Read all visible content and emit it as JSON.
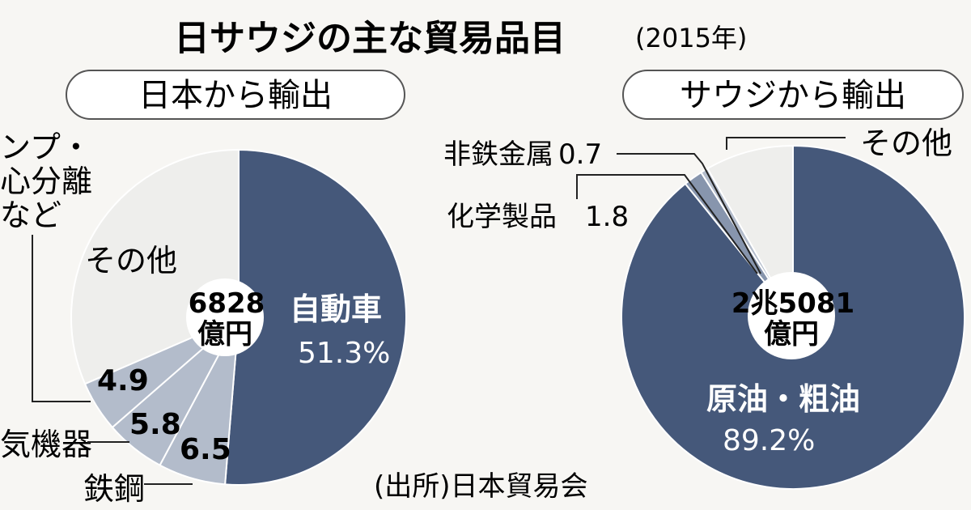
{
  "title": {
    "main": "日サウジの主な貿易品目",
    "year": "(2015年)"
  },
  "source": "(出所)日本貿易会",
  "colors": {
    "main_slice": "#45587a",
    "mid_slice": "#8795ad",
    "light_slice": "#b3bccb",
    "other_slice": "#eeeeec",
    "background": "#f7f6f3",
    "text": "#1a1a1a"
  },
  "chart_data": [
    {
      "type": "pie",
      "panel_label": "日本から輸出",
      "total": {
        "value": "6828",
        "unit": "億円"
      },
      "slices": [
        {
          "label": "自動車",
          "value": 51.3,
          "value_label": "51.3%"
        },
        {
          "label": "鉄鋼",
          "value": 6.5,
          "value_label": "6.5"
        },
        {
          "label": "気機器",
          "value": 5.8,
          "value_label": "5.8"
        },
        {
          "label": "ンプ・\n心分離\nなど",
          "value": 4.9,
          "value_label": "4.9"
        },
        {
          "label": "その他",
          "value": 31.5,
          "value_label": ""
        }
      ]
    },
    {
      "type": "pie",
      "panel_label": "サウジから輸出",
      "total": {
        "value": "2兆5081",
        "unit": "億円"
      },
      "slices": [
        {
          "label": "原油・粗油",
          "value": 89.2,
          "value_label": "89.2%"
        },
        {
          "label": "化学製品",
          "value": 1.8,
          "value_label": "1.8"
        },
        {
          "label": "非鉄金属",
          "value": 0.7,
          "value_label": "0.7"
        },
        {
          "label": "その他",
          "value": 8.3,
          "value_label": ""
        }
      ]
    }
  ]
}
